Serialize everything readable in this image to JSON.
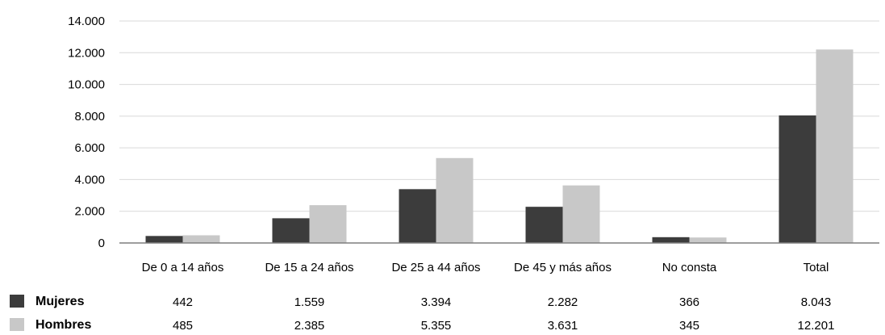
{
  "chart_data": {
    "type": "bar",
    "title": "",
    "xlabel": "",
    "ylabel": "",
    "ylim": [
      0,
      14000
    ],
    "yticks": [
      0,
      2000,
      4000,
      6000,
      8000,
      10000,
      12000,
      14000
    ],
    "ytick_labels": [
      "0",
      "2.000",
      "4.000",
      "6.000",
      "8.000",
      "10.000",
      "12.000",
      "14.000"
    ],
    "grid": true,
    "legend": "bottom-left data table",
    "categories": [
      "De 0 a 14 años",
      "De 15 a 24 años",
      "De 25 a 44 años",
      "De 45 y más años",
      "No consta",
      "Total"
    ],
    "series": [
      {
        "name": "Mujeres",
        "color": "#3c3c3c",
        "values": [
          442,
          1559,
          3394,
          2282,
          366,
          8043
        ],
        "labels": [
          "442",
          "1.559",
          "3.394",
          "2.282",
          "366",
          "8.043"
        ]
      },
      {
        "name": "Hombres",
        "color": "#c8c8c8",
        "values": [
          485,
          2385,
          5355,
          3631,
          345,
          12201
        ],
        "labels": [
          "485",
          "2.385",
          "5.355",
          "3.631",
          "345",
          "12.201"
        ]
      }
    ]
  }
}
